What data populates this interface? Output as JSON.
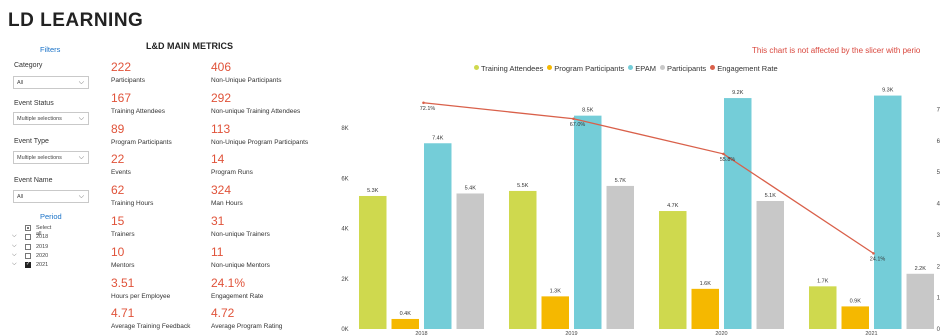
{
  "app_title": "LD LEARNING",
  "filters": {
    "title": "Filters",
    "groups": [
      {
        "label": "Category",
        "value": "All"
      },
      {
        "label": "Event Status",
        "value": "Multiple selections"
      },
      {
        "label": "Event Type",
        "value": "Multiple selections"
      },
      {
        "label": "Event Name",
        "value": "All"
      }
    ],
    "period": {
      "title": "Period",
      "items": [
        {
          "label": "Select all",
          "state": "partial",
          "expander": false
        },
        {
          "label": "2018",
          "state": "unchecked",
          "expander": true
        },
        {
          "label": "2019",
          "state": "unchecked",
          "expander": true
        },
        {
          "label": "2020",
          "state": "unchecked",
          "expander": true
        },
        {
          "label": "2021",
          "state": "checked",
          "expander": true
        }
      ]
    }
  },
  "metrics": {
    "title": "L&D MAIN METRICS",
    "items": [
      {
        "value": "222",
        "label": "Participants"
      },
      {
        "value": "406",
        "label": "Non-Unique Participants"
      },
      {
        "value": "167",
        "label": "Training Attendees"
      },
      {
        "value": "292",
        "label": "Non-unique Training Attendees"
      },
      {
        "value": "89",
        "label": "Program Participants"
      },
      {
        "value": "113",
        "label": "Non-Unique Program Participants"
      },
      {
        "value": "22",
        "label": "Events"
      },
      {
        "value": "14",
        "label": "Program Runs"
      },
      {
        "value": "62",
        "label": "Training Hours"
      },
      {
        "value": "324",
        "label": "Man Hours"
      },
      {
        "value": "15",
        "label": "Trainers"
      },
      {
        "value": "31",
        "label": "Non-unique Trainers"
      },
      {
        "value": "10",
        "label": "Mentors"
      },
      {
        "value": "11",
        "label": "Non-unique Mentors"
      },
      {
        "value": "3.51",
        "label": "Hours per Employee"
      },
      {
        "value": "24.1%",
        "label": "Engagement Rate"
      },
      {
        "value": "4.71",
        "label": "Average Training Feedback"
      },
      {
        "value": "4.72",
        "label": "Average Program Rating"
      }
    ]
  },
  "chart_note": "This chart is not affected by the slicer with perio",
  "chart_data": {
    "type": "bar",
    "categories": [
      "2018",
      "2019",
      "2020",
      "2021"
    ],
    "series": [
      {
        "name": "Training Attendees",
        "color": "#cfd94e",
        "values": [
          5300,
          5500,
          4700,
          1700
        ],
        "labels": [
          "5.3K",
          "5.5K",
          "4.7K",
          "1.7K"
        ]
      },
      {
        "name": "Program Participants",
        "color": "#f5b800",
        "values": [
          400,
          1300,
          1600,
          900
        ],
        "labels": [
          "0.4K",
          "1.3K",
          "1.6K",
          "0.9K"
        ]
      },
      {
        "name": "EPAM",
        "color": "#74cdd8",
        "values": [
          7400,
          8500,
          9200,
          9300
        ],
        "labels": [
          "7.4K",
          "8.5K",
          "9.2K",
          "9.3K"
        ]
      },
      {
        "name": "Participants",
        "color": "#c8c8c8",
        "values": [
          5400,
          5700,
          5100,
          2200
        ],
        "labels": [
          "5.4K",
          "5.7K",
          "5.1K",
          "2.2K"
        ]
      }
    ],
    "line_series": {
      "name": "Engagement Rate",
      "color": "#d9604a",
      "values": [
        72.1,
        67.0,
        55.8,
        24.1
      ],
      "labels": [
        "72.1%",
        "67.0%",
        "55.8%",
        "24.1%"
      ]
    },
    "y_ticks": [
      "0K",
      "2K",
      "4K",
      "6K",
      "8K"
    ],
    "ylim": [
      0,
      10000
    ],
    "y2_ticks": [
      "0",
      "1",
      "2",
      "3",
      "4",
      "5",
      "6",
      "7"
    ],
    "y2lim": [
      0,
      80
    ],
    "legend_position": "top"
  }
}
